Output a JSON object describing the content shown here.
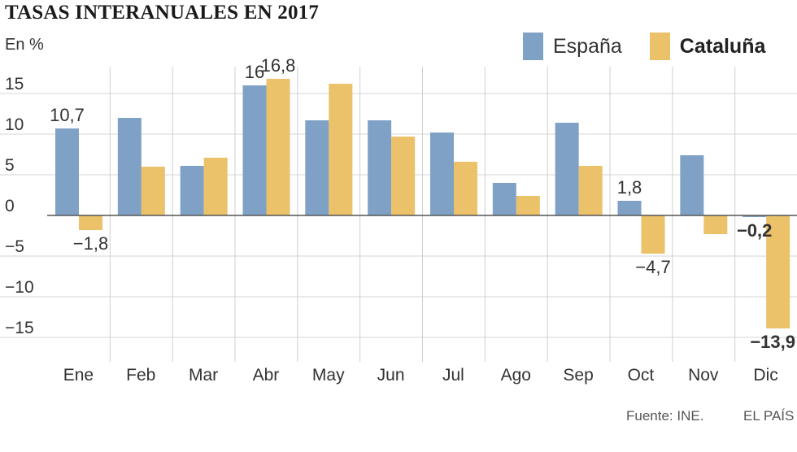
{
  "title": "TASAS INTERANUALES EN 2017",
  "unit_label": "En %",
  "source": "Fuente: INE.",
  "brand": "EL PAÍS",
  "legend": [
    {
      "name": "España",
      "color": "#7fa1c6",
      "bold": false
    },
    {
      "name": "Cataluña",
      "color": "#ebc16a",
      "bold": true
    }
  ],
  "chart_data": {
    "type": "bar",
    "categories": [
      "Ene",
      "Feb",
      "Mar",
      "Abr",
      "May",
      "Jun",
      "Jul",
      "Ago",
      "Sep",
      "Oct",
      "Nov",
      "Dic"
    ],
    "series": [
      {
        "name": "España",
        "color": "#7fa1c6",
        "values": [
          10.7,
          12.0,
          6.1,
          16.0,
          11.7,
          11.7,
          10.2,
          4.0,
          11.4,
          1.8,
          7.4,
          -0.2
        ]
      },
      {
        "name": "Cataluña",
        "color": "#ebc16a",
        "values": [
          -1.8,
          6.0,
          7.1,
          16.8,
          16.2,
          9.7,
          6.6,
          2.4,
          6.1,
          -4.7,
          -2.3,
          -13.9
        ]
      }
    ],
    "yticks": [
      15,
      10,
      5,
      0,
      -5,
      -10,
      -15
    ],
    "ytick_labels": [
      "15",
      "10",
      "5",
      "0",
      "-5",
      "-10",
      "-15"
    ],
    "ylim": [
      -17.2,
      18.3
    ],
    "grid": "horizontal",
    "legend_position": "top-right",
    "data_labels": [
      {
        "series": 0,
        "index": 0,
        "text": "10,7",
        "bold": false
      },
      {
        "series": 1,
        "index": 0,
        "text": "-1,8",
        "bold": false
      },
      {
        "series": 0,
        "index": 3,
        "text": "16",
        "bold": false
      },
      {
        "series": 1,
        "index": 3,
        "text": "16,8",
        "bold": false
      },
      {
        "series": 0,
        "index": 9,
        "text": "1,8",
        "bold": false
      },
      {
        "series": 1,
        "index": 9,
        "text": "-4,7",
        "bold": false
      },
      {
        "series": 0,
        "index": 11,
        "text": "-0,2",
        "bold": true
      },
      {
        "series": 1,
        "index": 11,
        "text": "-13,9",
        "bold": true
      }
    ]
  }
}
